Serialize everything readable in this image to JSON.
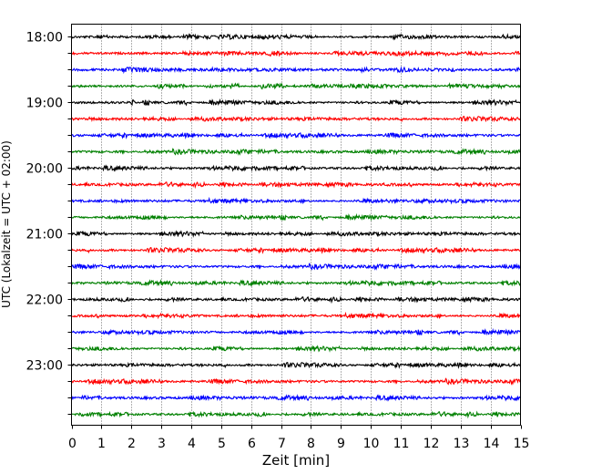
{
  "chart_data": {
    "type": "line",
    "title": "",
    "xlabel": "Zeit  [min]",
    "ylabel": "UTC (Lokalzeit = UTC + 02:00)",
    "xlim": [
      0,
      15
    ],
    "x_ticks": [
      0,
      1,
      2,
      3,
      4,
      5,
      6,
      7,
      8,
      9,
      10,
      11,
      12,
      13,
      14,
      15
    ],
    "y_tick_labels": [
      "18:00",
      "19:00",
      "20:00",
      "21:00",
      "22:00",
      "23:00"
    ],
    "grid": "vertical-dotted",
    "colors": [
      "#000000",
      "#ff0000",
      "#0000ff",
      "#008000"
    ],
    "row_minutes": 15,
    "rows": [
      {
        "start": "18:00",
        "color": "#000000"
      },
      {
        "start": "18:15",
        "color": "#ff0000"
      },
      {
        "start": "18:30",
        "color": "#0000ff"
      },
      {
        "start": "18:45",
        "color": "#008000"
      },
      {
        "start": "19:00",
        "color": "#000000"
      },
      {
        "start": "19:15",
        "color": "#ff0000"
      },
      {
        "start": "19:30",
        "color": "#0000ff"
      },
      {
        "start": "19:45",
        "color": "#008000"
      },
      {
        "start": "20:00",
        "color": "#000000"
      },
      {
        "start": "20:15",
        "color": "#ff0000"
      },
      {
        "start": "20:30",
        "color": "#0000ff"
      },
      {
        "start": "20:45",
        "color": "#008000"
      },
      {
        "start": "21:00",
        "color": "#000000"
      },
      {
        "start": "21:15",
        "color": "#ff0000"
      },
      {
        "start": "21:30",
        "color": "#0000ff"
      },
      {
        "start": "21:45",
        "color": "#008000"
      },
      {
        "start": "22:00",
        "color": "#000000"
      },
      {
        "start": "22:15",
        "color": "#ff0000"
      },
      {
        "start": "22:30",
        "color": "#0000ff"
      },
      {
        "start": "22:45",
        "color": "#008000"
      },
      {
        "start": "23:00",
        "color": "#000000"
      },
      {
        "start": "23:15",
        "color": "#ff0000"
      },
      {
        "start": "23:30",
        "color": "#0000ff"
      },
      {
        "start": "23:45",
        "color": "#008000"
      }
    ]
  }
}
